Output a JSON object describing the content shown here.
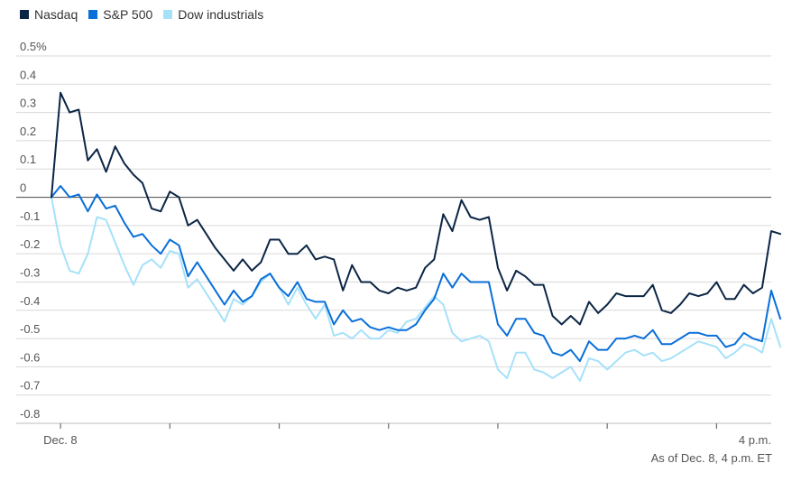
{
  "chart_data": {
    "type": "line",
    "title": "",
    "xlabel": "",
    "ylabel": "",
    "ylim": [
      -0.8,
      0.5
    ],
    "y_ticks": [
      0.5,
      0.4,
      0.3,
      0.2,
      0.1,
      0,
      -0.1,
      -0.2,
      -0.3,
      -0.4,
      -0.5,
      -0.6,
      -0.7,
      -0.8
    ],
    "y_tick_labels": [
      "0.5%",
      "0.4",
      "0.3",
      "0.2",
      "0.1",
      "0",
      "-0.1",
      "-0.2",
      "-0.3",
      "-0.4",
      "-0.5",
      "-0.6",
      "-0.7",
      "-0.8"
    ],
    "x_axis": {
      "start": "9:30 a.m.",
      "end": "4 p.m.",
      "step_minutes": 5,
      "tick_every_minutes": 60,
      "x_range_minutes": [
        0,
        395
      ]
    },
    "x_tick_labels": [
      {
        "minute": 5,
        "label": "Dec. 8"
      },
      {
        "minute": 390,
        "label": "4 p.m."
      }
    ],
    "gridlines": true,
    "legend_position": "top-left",
    "series": [
      {
        "name": "Nasdaq",
        "color": "#0b2545",
        "values": [
          0.0,
          0.37,
          0.3,
          0.31,
          0.13,
          0.17,
          0.09,
          0.18,
          0.12,
          0.08,
          0.05,
          -0.04,
          -0.05,
          0.02,
          0.0,
          -0.1,
          -0.08,
          -0.13,
          -0.18,
          -0.22,
          -0.26,
          -0.22,
          -0.26,
          -0.23,
          -0.15,
          -0.15,
          -0.2,
          -0.2,
          -0.17,
          -0.22,
          -0.21,
          -0.22,
          -0.33,
          -0.24,
          -0.3,
          -0.3,
          -0.33,
          -0.34,
          -0.32,
          -0.33,
          -0.32,
          -0.25,
          -0.22,
          -0.06,
          -0.12,
          -0.01,
          -0.07,
          -0.08,
          -0.07,
          -0.25,
          -0.33,
          -0.26,
          -0.28,
          -0.31,
          -0.31,
          -0.42,
          -0.45,
          -0.42,
          -0.45,
          -0.37,
          -0.41,
          -0.38,
          -0.34,
          -0.35,
          -0.35,
          -0.35,
          -0.31,
          -0.4,
          -0.41,
          -0.38,
          -0.34,
          -0.35,
          -0.34,
          -0.3,
          -0.36,
          -0.36,
          -0.31,
          -0.34,
          -0.32,
          -0.12,
          -0.13
        ]
      },
      {
        "name": "S&P 500",
        "color": "#0a6fd8",
        "values": [
          0.0,
          0.04,
          0.0,
          0.01,
          -0.05,
          0.01,
          -0.04,
          -0.03,
          -0.09,
          -0.14,
          -0.13,
          -0.17,
          -0.2,
          -0.15,
          -0.17,
          -0.28,
          -0.23,
          -0.28,
          -0.33,
          -0.38,
          -0.33,
          -0.37,
          -0.35,
          -0.29,
          -0.27,
          -0.32,
          -0.35,
          -0.3,
          -0.36,
          -0.37,
          -0.37,
          -0.45,
          -0.4,
          -0.44,
          -0.43,
          -0.46,
          -0.47,
          -0.46,
          -0.47,
          -0.47,
          -0.45,
          -0.4,
          -0.36,
          -0.27,
          -0.32,
          -0.27,
          -0.3,
          -0.3,
          -0.3,
          -0.45,
          -0.49,
          -0.43,
          -0.43,
          -0.48,
          -0.49,
          -0.55,
          -0.56,
          -0.54,
          -0.58,
          -0.51,
          -0.54,
          -0.54,
          -0.5,
          -0.5,
          -0.49,
          -0.5,
          -0.47,
          -0.52,
          -0.52,
          -0.5,
          -0.48,
          -0.48,
          -0.49,
          -0.49,
          -0.53,
          -0.52,
          -0.48,
          -0.5,
          -0.51,
          -0.33,
          -0.43
        ]
      },
      {
        "name": "Dow industrials",
        "color": "#a6e1fa",
        "values": [
          0.0,
          -0.17,
          -0.26,
          -0.27,
          -0.2,
          -0.07,
          -0.08,
          -0.16,
          -0.24,
          -0.31,
          -0.24,
          -0.22,
          -0.25,
          -0.19,
          -0.2,
          -0.32,
          -0.29,
          -0.34,
          -0.39,
          -0.44,
          -0.36,
          -0.38,
          -0.35,
          -0.3,
          -0.27,
          -0.32,
          -0.38,
          -0.32,
          -0.38,
          -0.43,
          -0.38,
          -0.49,
          -0.48,
          -0.5,
          -0.47,
          -0.5,
          -0.5,
          -0.47,
          -0.48,
          -0.44,
          -0.43,
          -0.39,
          -0.35,
          -0.38,
          -0.48,
          -0.51,
          -0.5,
          -0.49,
          -0.51,
          -0.61,
          -0.64,
          -0.55,
          -0.55,
          -0.61,
          -0.62,
          -0.64,
          -0.62,
          -0.6,
          -0.65,
          -0.57,
          -0.58,
          -0.61,
          -0.58,
          -0.55,
          -0.54,
          -0.56,
          -0.55,
          -0.58,
          -0.57,
          -0.55,
          -0.53,
          -0.51,
          -0.52,
          -0.53,
          -0.57,
          -0.55,
          -0.52,
          -0.53,
          -0.55,
          -0.43,
          -0.53
        ]
      }
    ]
  },
  "legend": [
    {
      "label": "Nasdaq",
      "color": "#0b2545"
    },
    {
      "label": "S&P 500",
      "color": "#0a6fd8"
    },
    {
      "label": "Dow industrials",
      "color": "#a6e1fa"
    }
  ],
  "note": "As of Dec. 8, 4 p.m. ET"
}
